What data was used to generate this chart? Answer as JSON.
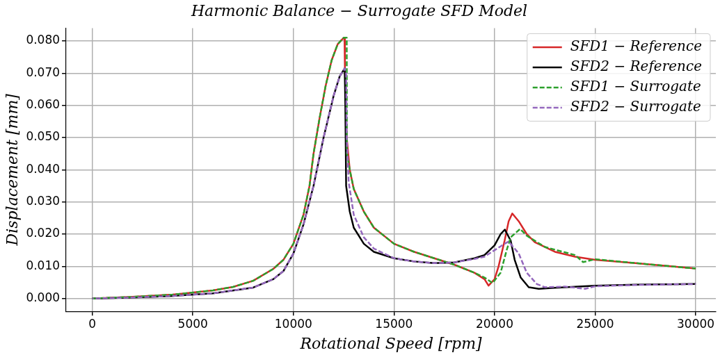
{
  "chart_data": {
    "type": "line",
    "title": "Harmonic Balance − Surrogate SFD Model",
    "xlabel": "Rotational Speed [rpm]",
    "ylabel": "Displacement [mm]",
    "xlim": [
      -1300,
      31000
    ],
    "ylim": [
      -0.004,
      0.084
    ],
    "xticks": [
      0,
      5000,
      10000,
      15000,
      20000,
      25000,
      30000
    ],
    "yticks": [
      {
        "value": 0,
        "label": "0.000"
      },
      {
        "value": 0.01,
        "label": "0.010"
      },
      {
        "value": 0.02,
        "label": "0.020"
      },
      {
        "value": 0.03,
        "label": "0.030"
      },
      {
        "value": 0.04,
        "label": "0.040"
      },
      {
        "value": 0.05,
        "label": "0.050"
      },
      {
        "value": 0.06,
        "label": "0.060"
      },
      {
        "value": 0.07,
        "label": "0.070"
      },
      {
        "value": 0.08,
        "label": "0.080"
      }
    ],
    "grid": true,
    "legend": "top right",
    "marker": "none",
    "series": [
      {
        "name": "SFD1 − Reference",
        "color": "#d62728",
        "line_style": "solid",
        "x": [
          0,
          2000,
          4000,
          6000,
          7000,
          8000,
          9000,
          9500,
          10000,
          10500,
          10800,
          11000,
          11300,
          11600,
          11900,
          12200,
          12500,
          12540,
          12560,
          12650,
          12800,
          13000,
          13500,
          14000,
          15000,
          16000,
          17000,
          18000,
          19000,
          19500,
          19700,
          20000,
          20200,
          20500,
          20700,
          20880,
          21200,
          21600,
          22000,
          23000,
          24000,
          25000,
          27000,
          30000
        ],
        "values": [
          0,
          0.0005,
          0.0012,
          0.0025,
          0.0036,
          0.0055,
          0.0092,
          0.012,
          0.017,
          0.026,
          0.035,
          0.045,
          0.056,
          0.066,
          0.074,
          0.079,
          0.081,
          0.081,
          0.0715,
          0.05,
          0.04,
          0.034,
          0.027,
          0.022,
          0.017,
          0.0145,
          0.0125,
          0.0105,
          0.008,
          0.006,
          0.004,
          0.006,
          0.01,
          0.018,
          0.024,
          0.0264,
          0.024,
          0.02,
          0.0175,
          0.0145,
          0.013,
          0.012,
          0.011,
          0.0093
        ]
      },
      {
        "name": "SFD2 − Reference",
        "color": "#000000",
        "line_style": "solid",
        "x": [
          0,
          2000,
          4000,
          6000,
          8000,
          9000,
          9500,
          10000,
          10500,
          11000,
          11500,
          12000,
          12300,
          12550,
          12580,
          12620,
          12800,
          13000,
          13500,
          14000,
          15000,
          16000,
          17000,
          18000,
          19000,
          19500,
          20000,
          20300,
          20510,
          20800,
          21000,
          21300,
          21700,
          22200,
          23000,
          25000,
          27000,
          30000
        ],
        "values": [
          0,
          0.0003,
          0.0008,
          0.0016,
          0.0034,
          0.006,
          0.0085,
          0.014,
          0.023,
          0.035,
          0.05,
          0.063,
          0.069,
          0.0715,
          0.06,
          0.035,
          0.027,
          0.022,
          0.017,
          0.0145,
          0.0125,
          0.0115,
          0.011,
          0.0112,
          0.0125,
          0.0135,
          0.0165,
          0.02,
          0.0214,
          0.018,
          0.012,
          0.0065,
          0.0035,
          0.003,
          0.0033,
          0.004,
          0.0043,
          0.0045
        ]
      },
      {
        "name": "SFD1 − Surrogate",
        "color": "#2ca02c",
        "line_style": "dashed",
        "x": [
          0,
          2000,
          4000,
          6000,
          7000,
          8000,
          9000,
          9500,
          10000,
          10500,
          10800,
          11000,
          11300,
          11600,
          11900,
          12200,
          12500,
          12650,
          12660,
          12800,
          13000,
          13500,
          14000,
          15000,
          16000,
          17000,
          18000,
          19000,
          19500,
          19900,
          20300,
          20600,
          20800,
          21270,
          21600,
          22500,
          24000,
          24400,
          25000,
          27000,
          30000
        ],
        "values": [
          0,
          0.0005,
          0.0012,
          0.0025,
          0.0036,
          0.0055,
          0.0092,
          0.012,
          0.017,
          0.026,
          0.035,
          0.045,
          0.056,
          0.066,
          0.074,
          0.079,
          0.081,
          0.081,
          0.045,
          0.04,
          0.034,
          0.027,
          0.022,
          0.017,
          0.0145,
          0.0125,
          0.0105,
          0.008,
          0.0065,
          0.0048,
          0.008,
          0.015,
          0.019,
          0.0216,
          0.0195,
          0.016,
          0.0135,
          0.0113,
          0.0122,
          0.011,
          0.0093
        ]
      },
      {
        "name": "SFD2 − Surrogate",
        "color": "#9467bd",
        "line_style": "dashed",
        "x": [
          0,
          2000,
          4000,
          6000,
          8000,
          9000,
          9500,
          10000,
          10500,
          11000,
          11500,
          12000,
          12300,
          12550,
          12620,
          12650,
          12750,
          13000,
          13500,
          14000,
          15000,
          16000,
          17000,
          18000,
          19000,
          19500,
          20000,
          20500,
          20700,
          21200,
          21600,
          22100,
          22500,
          23500,
          24500,
          25000,
          27000,
          30000
        ],
        "values": [
          0,
          0.0003,
          0.0008,
          0.0016,
          0.0034,
          0.006,
          0.0085,
          0.014,
          0.023,
          0.035,
          0.05,
          0.063,
          0.069,
          0.0715,
          0.07,
          0.05,
          0.036,
          0.026,
          0.019,
          0.0155,
          0.0125,
          0.0115,
          0.011,
          0.0112,
          0.0123,
          0.013,
          0.015,
          0.017,
          0.0177,
          0.014,
          0.008,
          0.0045,
          0.0035,
          0.0037,
          0.003,
          0.0038,
          0.0042,
          0.0045
        ]
      }
    ]
  }
}
